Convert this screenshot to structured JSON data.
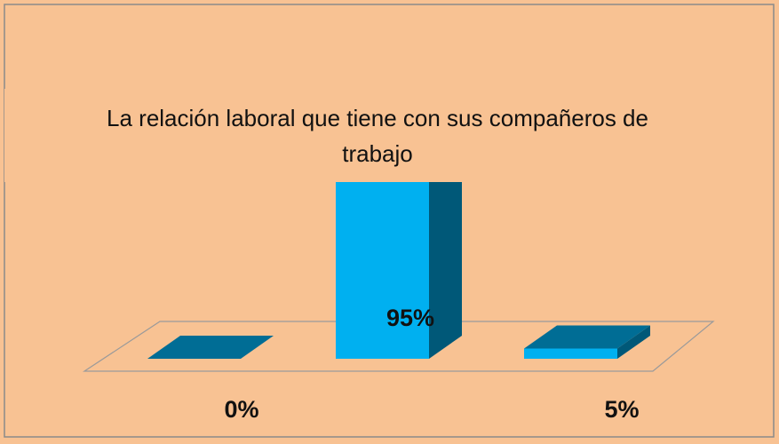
{
  "chart_data": {
    "type": "bar3d",
    "title": "La relación laboral que tiene con sus compañeros de trabajo",
    "categories": [
      null,
      null,
      null
    ],
    "values": [
      0,
      95,
      5
    ],
    "value_labels": [
      "0%",
      "95%",
      "5%"
    ],
    "color": "#00b0f0"
  }
}
